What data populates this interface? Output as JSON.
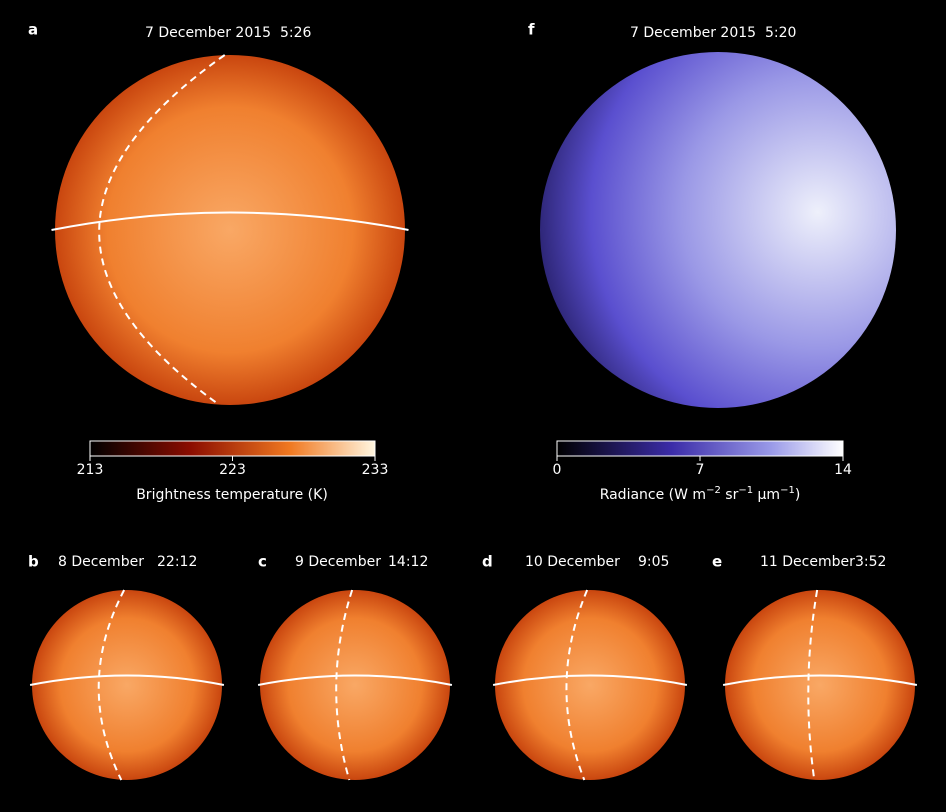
{
  "panels": [
    {
      "label": "a",
      "date": "7 December 2015",
      "time": "5:26"
    },
    {
      "label": "f",
      "date": "7 December 2015",
      "time": "5:20"
    },
    {
      "label": "b",
      "date": "8 December",
      "time": "22:12"
    },
    {
      "label": "c",
      "date": "9 December",
      "time": "14:12"
    },
    {
      "label": "d",
      "date": "10 December",
      "time": "9:05"
    },
    {
      "label": "e",
      "date": "11 December",
      "time": "3:52"
    }
  ],
  "colorbars": [
    {
      "ticks": [
        213,
        223,
        233
      ],
      "label": [
        "Brightness temperature (K)"
      ]
    },
    {
      "ticks": [
        0,
        7,
        14
      ],
      "label": [
        "Radiance (W m",
        "−2",
        " sr",
        "−1",
        " μm",
        "−1",
        ")"
      ]
    }
  ]
}
